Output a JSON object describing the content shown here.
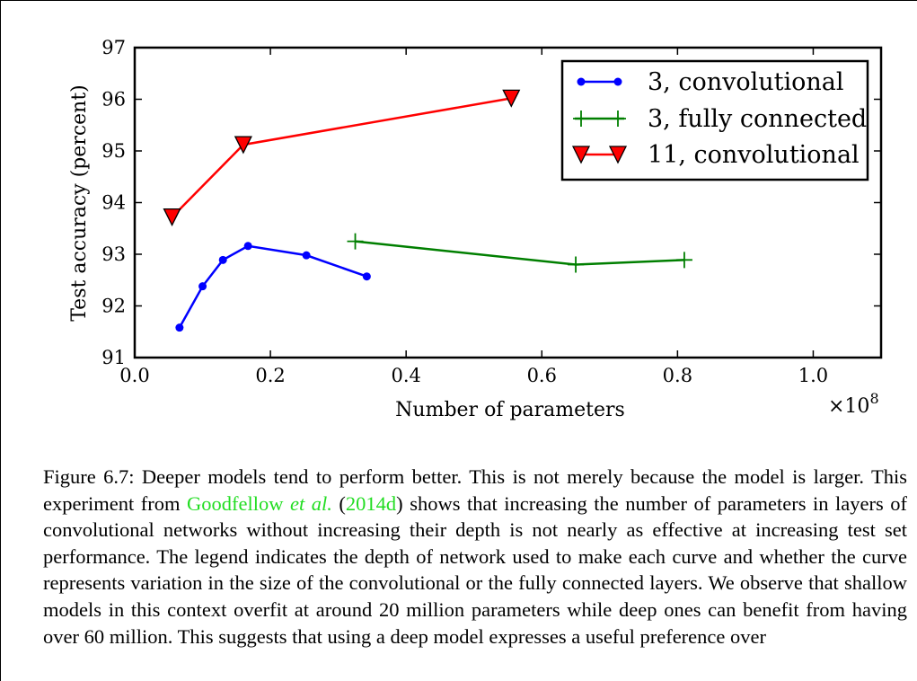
{
  "chart_data": {
    "type": "line",
    "xlabel": "Number of parameters",
    "ylabel": "Test accuracy (percent)",
    "x_multiplier": "×10",
    "x_multiplier_exponent": "8",
    "xlim": [
      0.0,
      1.1
    ],
    "ylim": [
      91,
      97
    ],
    "xticks": [
      "0.0",
      "0.2",
      "0.4",
      "0.6",
      "0.8",
      "1.0"
    ],
    "xtick_values": [
      0.0,
      0.2,
      0.4,
      0.6,
      0.8,
      1.0
    ],
    "yticks": [
      "91",
      "92",
      "93",
      "94",
      "95",
      "96",
      "97"
    ],
    "ytick_values": [
      91,
      92,
      93,
      94,
      95,
      96,
      97
    ],
    "grid": false,
    "legend_position": "top-right",
    "series": [
      {
        "name": "3, convolutional",
        "color": "#0000ff",
        "marker": "circle",
        "x": [
          0.066,
          0.1,
          0.13,
          0.167,
          0.253,
          0.342
        ],
        "y": [
          91.58,
          92.38,
          92.89,
          93.16,
          92.98,
          92.57
        ]
      },
      {
        "name": "3, fully connected",
        "color": "#007f00",
        "marker": "plus",
        "x": [
          0.325,
          0.65,
          0.81
        ],
        "y": [
          93.25,
          92.8,
          92.89
        ]
      },
      {
        "name": "11, convolutional",
        "color": "#ff0000",
        "marker": "triangle-down",
        "x": [
          0.055,
          0.16,
          0.555
        ],
        "y": [
          93.72,
          95.12,
          96.02
        ]
      }
    ]
  },
  "caption": {
    "label": "Figure 6.7:",
    "text_1": " Deeper models tend to perform better. This is not merely because the model is larger. This experiment from ",
    "citation_author": "Goodfellow ",
    "citation_etal": "et al.",
    "citation_open": " (",
    "citation_year": "2014d",
    "citation_close": ")",
    "text_2": " shows that increasing the number of parameters in layers of convolutional networks without increasing their depth is not nearly as effective at increasing test set performance. The legend indicates the depth of network used to make each curve and whether the curve represents variation in the size of the convolutional or the fully connected layers. We observe that shallow models in this context overfit at around 20 million parameters while deep ones can benefit from having over 60 million. This suggests that using a deep model expresses a useful preference over"
  }
}
